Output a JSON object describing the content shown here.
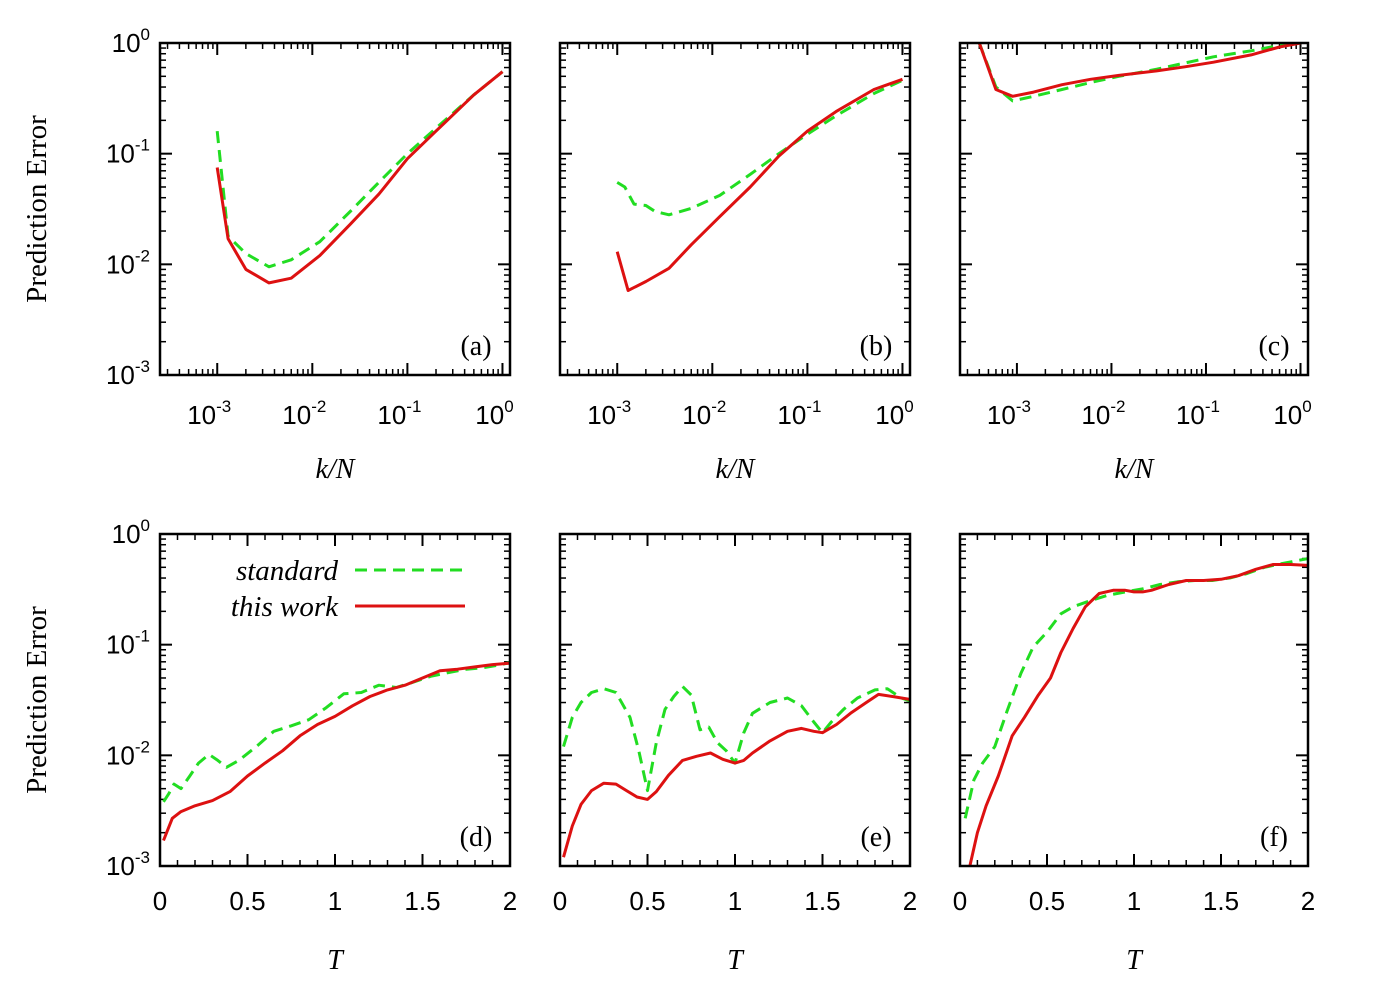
{
  "colors": {
    "standard": "#22dd22",
    "this_work": "#dd1111",
    "axes": "#000000"
  },
  "legend": [
    {
      "key": "standard",
      "label": "standard"
    },
    {
      "key": "this_work",
      "label": "this work"
    }
  ],
  "chart_data": [
    {
      "type": "line",
      "panel_label": "(a)",
      "xlabel": "k/N",
      "ylabel": "Prediction Error",
      "xscale": "log",
      "yscale": "log",
      "xlim": [
        0.00025,
        1.2
      ],
      "ylim": [
        0.001,
        1
      ],
      "series": [
        {
          "name": "standard",
          "style": "dashed",
          "x": [
            0.001,
            0.0013,
            0.002,
            0.0035,
            0.006,
            0.012,
            0.025,
            0.05,
            0.1,
            0.2,
            0.5,
            1.0
          ],
          "y": [
            0.16,
            0.018,
            0.0125,
            0.0095,
            0.011,
            0.016,
            0.03,
            0.055,
            0.1,
            0.17,
            0.34,
            0.55
          ]
        },
        {
          "name": "this work",
          "style": "solid",
          "x": [
            0.001,
            0.0013,
            0.002,
            0.0035,
            0.006,
            0.012,
            0.025,
            0.05,
            0.1,
            0.2,
            0.5,
            1.0
          ],
          "y": [
            0.075,
            0.017,
            0.009,
            0.0068,
            0.0075,
            0.012,
            0.023,
            0.043,
            0.09,
            0.16,
            0.34,
            0.55
          ]
        }
      ]
    },
    {
      "type": "line",
      "panel_label": "(b)",
      "xlabel": "k/N",
      "ylabel": "",
      "xscale": "log",
      "yscale": "log",
      "xlim": [
        0.00025,
        1.2
      ],
      "ylim": [
        0.001,
        1
      ],
      "series": [
        {
          "name": "standard",
          "style": "dashed",
          "x": [
            0.001,
            0.0012,
            0.0015,
            0.002,
            0.0025,
            0.0035,
            0.006,
            0.012,
            0.025,
            0.05,
            0.1,
            0.2,
            0.5,
            1.0
          ],
          "y": [
            0.055,
            0.05,
            0.035,
            0.034,
            0.03,
            0.028,
            0.032,
            0.042,
            0.065,
            0.1,
            0.15,
            0.22,
            0.35,
            0.46
          ]
        },
        {
          "name": "this work",
          "style": "solid",
          "x": [
            0.001,
            0.0013,
            0.002,
            0.0035,
            0.006,
            0.012,
            0.025,
            0.05,
            0.1,
            0.2,
            0.5,
            1.0
          ],
          "y": [
            0.013,
            0.0058,
            0.007,
            0.0092,
            0.015,
            0.027,
            0.05,
            0.095,
            0.16,
            0.24,
            0.38,
            0.47
          ]
        }
      ]
    },
    {
      "type": "line",
      "panel_label": "(c)",
      "xlabel": "k/N",
      "ylabel": "",
      "xscale": "log",
      "yscale": "log",
      "xlim": [
        0.00025,
        1.2
      ],
      "ylim": [
        0.001,
        1
      ],
      "series": [
        {
          "name": "standard",
          "style": "dashed",
          "x": [
            0.0004,
            0.0006,
            0.0009,
            0.0015,
            0.003,
            0.006,
            0.012,
            0.03,
            0.06,
            0.12,
            0.3,
            0.6,
            1.0
          ],
          "y": [
            1.0,
            0.4,
            0.3,
            0.33,
            0.38,
            0.44,
            0.5,
            0.58,
            0.66,
            0.75,
            0.85,
            0.95,
            1.0
          ]
        },
        {
          "name": "this work",
          "style": "solid",
          "x": [
            0.0004,
            0.0006,
            0.0009,
            0.0015,
            0.003,
            0.006,
            0.012,
            0.03,
            0.06,
            0.12,
            0.3,
            0.6,
            1.0
          ],
          "y": [
            1.0,
            0.38,
            0.33,
            0.36,
            0.42,
            0.47,
            0.51,
            0.56,
            0.61,
            0.67,
            0.78,
            0.92,
            1.0
          ]
        }
      ]
    },
    {
      "type": "line",
      "panel_label": "(d)",
      "xlabel": "T",
      "ylabel": "Prediction Error",
      "xscale": "linear",
      "yscale": "log",
      "xlim": [
        0,
        2
      ],
      "ylim": [
        0.001,
        1
      ],
      "xticks": [
        "0",
        "0.5",
        "1",
        "1.5",
        "2"
      ],
      "series": [
        {
          "name": "standard",
          "style": "dashed",
          "x": [
            0.02,
            0.05,
            0.08,
            0.12,
            0.17,
            0.22,
            0.28,
            0.33,
            0.38,
            0.45,
            0.55,
            0.65,
            0.75,
            0.85,
            0.95,
            1.05,
            1.15,
            1.25,
            1.35,
            1.45,
            1.55,
            1.65,
            1.75,
            1.85,
            1.95,
            2.0
          ],
          "y": [
            0.0038,
            0.0045,
            0.0055,
            0.005,
            0.0065,
            0.0085,
            0.0102,
            0.009,
            0.0078,
            0.009,
            0.012,
            0.0165,
            0.0185,
            0.021,
            0.027,
            0.036,
            0.037,
            0.043,
            0.041,
            0.046,
            0.052,
            0.056,
            0.06,
            0.062,
            0.066,
            0.069
          ]
        },
        {
          "name": "this work",
          "style": "solid",
          "x": [
            0.02,
            0.07,
            0.12,
            0.2,
            0.3,
            0.4,
            0.5,
            0.6,
            0.7,
            0.8,
            0.9,
            1.0,
            1.1,
            1.2,
            1.3,
            1.4,
            1.5,
            1.6,
            1.7,
            1.8,
            1.9,
            2.0
          ],
          "y": [
            0.0017,
            0.0027,
            0.0031,
            0.0035,
            0.0039,
            0.0047,
            0.0065,
            0.0085,
            0.011,
            0.015,
            0.019,
            0.0225,
            0.028,
            0.034,
            0.039,
            0.043,
            0.05,
            0.058,
            0.06,
            0.063,
            0.066,
            0.068
          ]
        }
      ]
    },
    {
      "type": "line",
      "panel_label": "(e)",
      "xlabel": "T",
      "ylabel": "",
      "xscale": "linear",
      "yscale": "log",
      "xlim": [
        0,
        2
      ],
      "ylim": [
        0.001,
        1
      ],
      "xticks": [
        "0",
        "0.5",
        "1",
        "1.5",
        "2"
      ],
      "series": [
        {
          "name": "standard",
          "style": "dashed",
          "x": [
            0.02,
            0.07,
            0.12,
            0.18,
            0.25,
            0.32,
            0.4,
            0.45,
            0.5,
            0.55,
            0.6,
            0.65,
            0.7,
            0.75,
            0.8,
            0.85,
            0.9,
            0.95,
            1.0,
            1.05,
            1.1,
            1.2,
            1.3,
            1.38,
            1.45,
            1.5,
            1.55,
            1.62,
            1.7,
            1.8,
            1.87,
            1.95,
            2.0
          ],
          "y": [
            0.012,
            0.022,
            0.03,
            0.037,
            0.04,
            0.037,
            0.022,
            0.011,
            0.0048,
            0.013,
            0.026,
            0.034,
            0.042,
            0.035,
            0.017,
            0.018,
            0.013,
            0.011,
            0.0085,
            0.016,
            0.024,
            0.03,
            0.033,
            0.028,
            0.02,
            0.016,
            0.02,
            0.026,
            0.033,
            0.039,
            0.04,
            0.033,
            0.031
          ]
        },
        {
          "name": "this work",
          "style": "solid",
          "x": [
            0.02,
            0.07,
            0.12,
            0.18,
            0.25,
            0.32,
            0.38,
            0.44,
            0.5,
            0.55,
            0.62,
            0.7,
            0.78,
            0.86,
            0.93,
            1.0,
            1.05,
            1.1,
            1.2,
            1.3,
            1.38,
            1.45,
            1.5,
            1.58,
            1.66,
            1.75,
            1.82,
            1.9,
            2.0
          ],
          "y": [
            0.0012,
            0.0023,
            0.0036,
            0.0048,
            0.0056,
            0.0055,
            0.0048,
            0.0042,
            0.004,
            0.0047,
            0.0066,
            0.009,
            0.0098,
            0.0105,
            0.0092,
            0.0085,
            0.009,
            0.0105,
            0.0135,
            0.0165,
            0.0175,
            0.0165,
            0.016,
            0.019,
            0.024,
            0.03,
            0.0355,
            0.034,
            0.032
          ]
        }
      ]
    },
    {
      "type": "line",
      "panel_label": "(f)",
      "xlabel": "T",
      "ylabel": "",
      "xscale": "linear",
      "yscale": "log",
      "xlim": [
        0,
        2
      ],
      "ylim": [
        0.001,
        1
      ],
      "xticks": [
        "0",
        "0.5",
        "1",
        "1.5",
        "2"
      ],
      "series": [
        {
          "name": "standard",
          "style": "dashed",
          "x": [
            0.03,
            0.08,
            0.13,
            0.2,
            0.27,
            0.35,
            0.42,
            0.5,
            0.58,
            0.65,
            0.75,
            0.85,
            0.95,
            1.05,
            1.15,
            1.25,
            1.35,
            1.45,
            1.55,
            1.65,
            1.75,
            1.85,
            1.95,
            2.0
          ],
          "y": [
            0.0027,
            0.006,
            0.0085,
            0.012,
            0.025,
            0.055,
            0.095,
            0.13,
            0.19,
            0.22,
            0.25,
            0.28,
            0.3,
            0.32,
            0.35,
            0.37,
            0.38,
            0.38,
            0.4,
            0.44,
            0.5,
            0.54,
            0.58,
            0.6
          ]
        },
        {
          "name": "this work",
          "style": "solid",
          "x": [
            0.05,
            0.1,
            0.15,
            0.22,
            0.3,
            0.37,
            0.45,
            0.52,
            0.58,
            0.65,
            0.72,
            0.8,
            0.88,
            0.95,
            1.0,
            1.05,
            1.1,
            1.2,
            1.3,
            1.4,
            1.5,
            1.6,
            1.7,
            1.8,
            1.9,
            2.0
          ],
          "y": [
            0.0009,
            0.002,
            0.0035,
            0.0065,
            0.015,
            0.022,
            0.035,
            0.05,
            0.085,
            0.14,
            0.22,
            0.29,
            0.31,
            0.31,
            0.3,
            0.3,
            0.31,
            0.35,
            0.38,
            0.38,
            0.39,
            0.42,
            0.48,
            0.53,
            0.53,
            0.52
          ]
        }
      ]
    }
  ],
  "log_ticks": {
    "x_base": "10",
    "x_exponents": [
      "-3",
      "-2",
      "-1",
      "0"
    ],
    "y_base": "10",
    "y_exponents": [
      "0",
      "-1",
      "-2",
      "-3"
    ]
  }
}
